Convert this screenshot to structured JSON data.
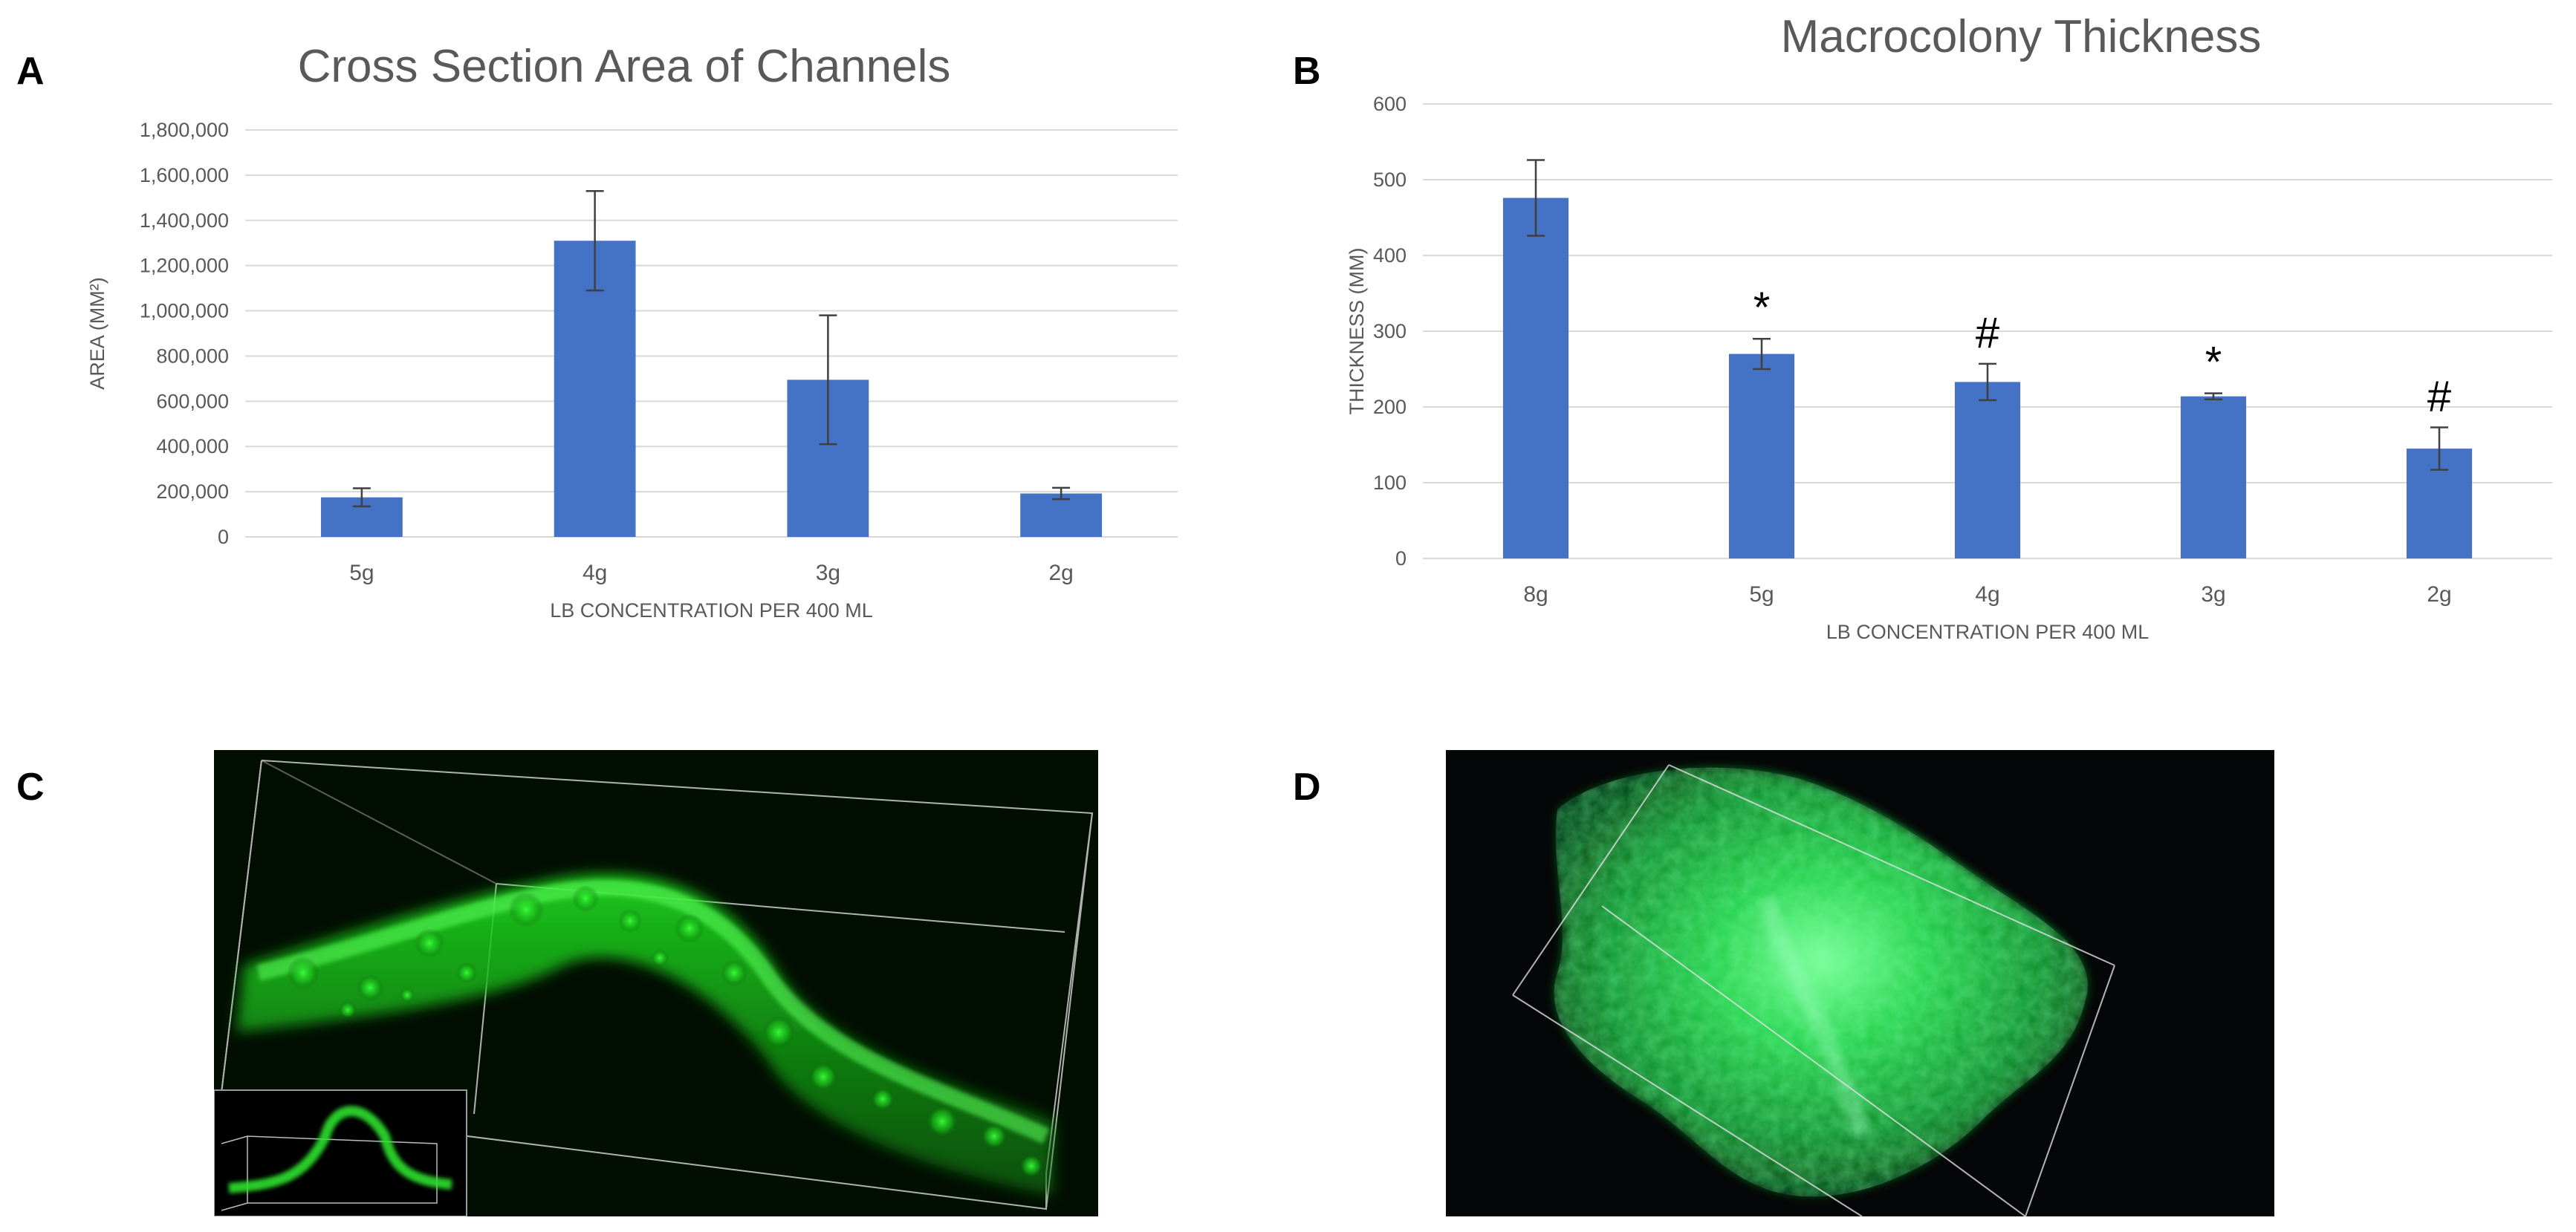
{
  "figure": {
    "panels": [
      {
        "id": "A",
        "label": "A"
      },
      {
        "id": "B",
        "label": "B"
      },
      {
        "id": "C",
        "label": "C"
      },
      {
        "id": "D",
        "label": "D"
      }
    ]
  },
  "colors": {
    "bar": "#4472C4",
    "grid": "#D9D9D9",
    "axis_text": "#595959",
    "title_text": "#595959",
    "error_bar": "#404040",
    "micro_bg": "#000000",
    "micro_green": "#18C918"
  },
  "chart_data": [
    {
      "panel": "A",
      "type": "bar",
      "title": "Cross Section Area of Channels",
      "xlabel": "LB CONCENTRATION PER 400 ML",
      "ylabel": "AREA (MM²)",
      "ylim": [
        0,
        1800000
      ],
      "yticks": [
        0,
        200000,
        400000,
        600000,
        800000,
        1000000,
        1200000,
        1400000,
        1600000,
        1800000
      ],
      "ytick_labels": [
        "0",
        "200,000",
        "400,000",
        "600,000",
        "800,000",
        "1,000,000",
        "1,200,000",
        "1,400,000",
        "1,600,000",
        "1,800,000"
      ],
      "categories": [
        "5g",
        "4g",
        "3g",
        "2g"
      ],
      "values": [
        175000,
        1310000,
        695000,
        192000
      ],
      "errors": [
        40000,
        220000,
        285000,
        25000
      ],
      "annotations": [
        "",
        "",
        "",
        ""
      ],
      "grid": true
    },
    {
      "panel": "B",
      "type": "bar",
      "title": "Macrocolony Thickness",
      "xlabel": "LB CONCENTRATION PER 400 ML",
      "ylabel": "THICKNESS (MM)",
      "ylim": [
        0,
        600
      ],
      "yticks": [
        0,
        100,
        200,
        300,
        400,
        500,
        600
      ],
      "ytick_labels": [
        "0",
        "100",
        "200",
        "300",
        "400",
        "500",
        "600"
      ],
      "categories": [
        "8g",
        "5g",
        "4g",
        "3g",
        "2g"
      ],
      "values": [
        476,
        270,
        233,
        214,
        145
      ],
      "errors": [
        50,
        20,
        24,
        4,
        28
      ],
      "annotations": [
        "",
        "*",
        "#",
        "*",
        "#"
      ],
      "grid": true
    }
  ],
  "images": {
    "C": {
      "description_icon": "fluorescence-3d-arch-image",
      "has_inset": true
    },
    "D": {
      "description_icon": "fluorescence-3d-macrocolony-image"
    }
  }
}
